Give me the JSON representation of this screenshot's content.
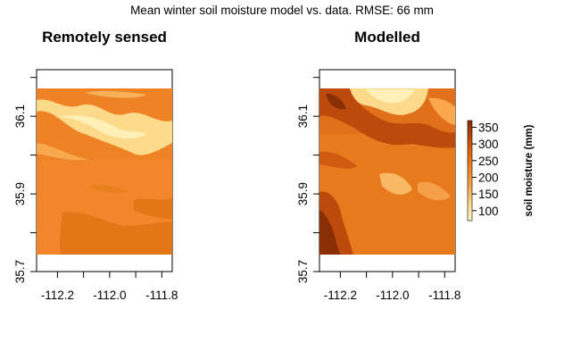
{
  "chart_data": {
    "type": "heatmap",
    "title": "Mean winter soil moisture model vs. data. RMSE: 66 mm",
    "colorscale": {
      "label": "soil moisture (mm)",
      "range": [
        70,
        370
      ],
      "ticks": [
        "100",
        "150",
        "200",
        "250",
        "300",
        "350"
      ],
      "colors": [
        "#FFF5C8",
        "#FDD98A",
        "#F9A84E",
        "#F2862A",
        "#E26A14",
        "#BC4A0A",
        "#8A2F05"
      ]
    },
    "panels": [
      {
        "title": "Remotely sensed",
        "xlim": [
          -112.28,
          -111.76
        ],
        "ylim": [
          35.7,
          36.22
        ],
        "data_extent": {
          "x": [
            -112.28,
            -111.76
          ],
          "y": [
            35.745,
            36.155
          ]
        },
        "xticks": [
          "-112.2",
          "-112.0",
          "-111.8"
        ],
        "yticks": [
          "35.7",
          "35.9",
          "36.1"
        ],
        "description_levels": "mostly 200-240 mm, light band ~110-170 mm in north, darker ~260-280 mm patches in south"
      },
      {
        "title": "Modelled",
        "xlim": [
          -112.28,
          -111.76
        ],
        "ylim": [
          35.7,
          36.22
        ],
        "data_extent": {
          "x": [
            -112.28,
            -111.76
          ],
          "y": [
            35.745,
            36.155
          ]
        },
        "xticks": [
          "-112.2",
          "-112.0",
          "-111.8"
        ],
        "yticks": [
          "35.7",
          "35.9",
          "36.1"
        ],
        "description_levels": "mostly 250-300 mm, light areas ~100-180 mm in north, dark ~330-360 mm in south-west and north-west"
      }
    ]
  }
}
